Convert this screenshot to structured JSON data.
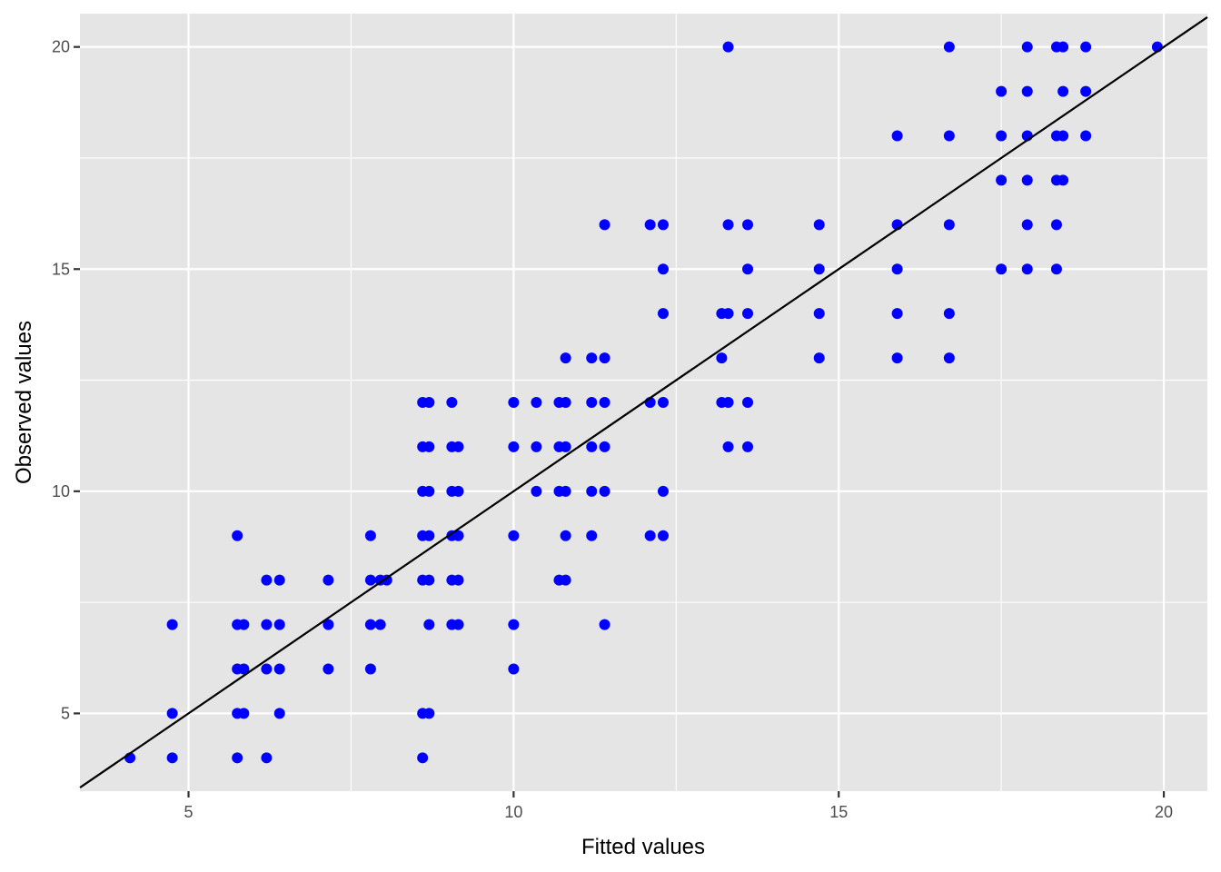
{
  "chart_data": {
    "type": "scatter",
    "title": "",
    "xlabel": "Fitted values",
    "ylabel": "Observed values",
    "xlim": [
      3.33,
      20.67
    ],
    "ylim": [
      3.25,
      20.75
    ],
    "x_ticks": [
      5,
      10,
      15,
      20
    ],
    "y_ticks": [
      5,
      10,
      15,
      20
    ],
    "x_tick_labels": [
      "5",
      "10",
      "15",
      "20"
    ],
    "y_tick_labels": [
      "5",
      "10",
      "15",
      "20"
    ],
    "grid": true,
    "legend": "none",
    "reference_line": {
      "intercept": 0,
      "slope": 1
    },
    "colors": {
      "points": "#0000ff",
      "line": "#000000",
      "panel": "#e5e5e5",
      "grid": "#ffffff"
    },
    "series": [
      {
        "points": [
          [
            4.1,
            4
          ],
          [
            4.75,
            4
          ],
          [
            4.75,
            5
          ],
          [
            4.75,
            7
          ],
          [
            5.75,
            9
          ],
          [
            5.75,
            7
          ],
          [
            5.75,
            6
          ],
          [
            5.75,
            5
          ],
          [
            5.75,
            4
          ],
          [
            5.85,
            7
          ],
          [
            5.85,
            6
          ],
          [
            5.85,
            5
          ],
          [
            6.2,
            8
          ],
          [
            6.2,
            7
          ],
          [
            6.2,
            6
          ],
          [
            6.2,
            4
          ],
          [
            6.4,
            8
          ],
          [
            6.4,
            7
          ],
          [
            6.4,
            6
          ],
          [
            6.4,
            5
          ],
          [
            7.15,
            8
          ],
          [
            7.15,
            7
          ],
          [
            7.15,
            6
          ],
          [
            7.8,
            9
          ],
          [
            7.8,
            8
          ],
          [
            7.8,
            7
          ],
          [
            7.8,
            6
          ],
          [
            7.95,
            8
          ],
          [
            7.95,
            7
          ],
          [
            8.05,
            8
          ],
          [
            8.6,
            12
          ],
          [
            8.6,
            11
          ],
          [
            8.6,
            10
          ],
          [
            8.6,
            9
          ],
          [
            8.6,
            8
          ],
          [
            8.6,
            5
          ],
          [
            8.6,
            4
          ],
          [
            8.7,
            12
          ],
          [
            8.7,
            11
          ],
          [
            8.7,
            10
          ],
          [
            8.7,
            9
          ],
          [
            8.7,
            8
          ],
          [
            8.7,
            7
          ],
          [
            8.7,
            5
          ],
          [
            9.05,
            12
          ],
          [
            9.05,
            11
          ],
          [
            9.05,
            10
          ],
          [
            9.05,
            9
          ],
          [
            9.05,
            8
          ],
          [
            9.05,
            7
          ],
          [
            9.15,
            11
          ],
          [
            9.15,
            10
          ],
          [
            9.15,
            9
          ],
          [
            9.15,
            8
          ],
          [
            9.15,
            7
          ],
          [
            10,
            12
          ],
          [
            10,
            11
          ],
          [
            10,
            9
          ],
          [
            10,
            7
          ],
          [
            10,
            6
          ],
          [
            10.35,
            12
          ],
          [
            10.35,
            11
          ],
          [
            10.35,
            10
          ],
          [
            10.7,
            12
          ],
          [
            10.7,
            11
          ],
          [
            10.7,
            10
          ],
          [
            10.7,
            8
          ],
          [
            10.8,
            13
          ],
          [
            10.8,
            12
          ],
          [
            10.8,
            11
          ],
          [
            10.8,
            10
          ],
          [
            10.8,
            9
          ],
          [
            10.8,
            8
          ],
          [
            11.2,
            13
          ],
          [
            11.2,
            12
          ],
          [
            11.2,
            11
          ],
          [
            11.2,
            10
          ],
          [
            11.2,
            9
          ],
          [
            11.4,
            16
          ],
          [
            11.4,
            13
          ],
          [
            11.4,
            12
          ],
          [
            11.4,
            11
          ],
          [
            11.4,
            10
          ],
          [
            11.4,
            7
          ],
          [
            12.1,
            16
          ],
          [
            12.1,
            12
          ],
          [
            12.1,
            9
          ],
          [
            12.3,
            16
          ],
          [
            12.3,
            15
          ],
          [
            12.3,
            14
          ],
          [
            12.3,
            12
          ],
          [
            12.3,
            10
          ],
          [
            12.3,
            9
          ],
          [
            13.2,
            14
          ],
          [
            13.2,
            13
          ],
          [
            13.2,
            12
          ],
          [
            13.3,
            20
          ],
          [
            13.3,
            16
          ],
          [
            13.3,
            14
          ],
          [
            13.3,
            12
          ],
          [
            13.3,
            11
          ],
          [
            13.6,
            16
          ],
          [
            13.6,
            15
          ],
          [
            13.6,
            14
          ],
          [
            13.6,
            12
          ],
          [
            13.6,
            11
          ],
          [
            14.7,
            16
          ],
          [
            14.7,
            15
          ],
          [
            14.7,
            14
          ],
          [
            14.7,
            13
          ],
          [
            15.9,
            18
          ],
          [
            15.9,
            16
          ],
          [
            15.9,
            15
          ],
          [
            15.9,
            14
          ],
          [
            15.9,
            13
          ],
          [
            16.7,
            20
          ],
          [
            16.7,
            18
          ],
          [
            16.7,
            16
          ],
          [
            16.7,
            14
          ],
          [
            16.7,
            13
          ],
          [
            17.5,
            19
          ],
          [
            17.5,
            18
          ],
          [
            17.5,
            17
          ],
          [
            17.5,
            15
          ],
          [
            17.9,
            20
          ],
          [
            17.9,
            19
          ],
          [
            17.9,
            18
          ],
          [
            17.9,
            17
          ],
          [
            17.9,
            16
          ],
          [
            17.9,
            15
          ],
          [
            18.35,
            20
          ],
          [
            18.35,
            18
          ],
          [
            18.35,
            17
          ],
          [
            18.35,
            16
          ],
          [
            18.35,
            15
          ],
          [
            18.45,
            20
          ],
          [
            18.45,
            19
          ],
          [
            18.45,
            18
          ],
          [
            18.45,
            17
          ],
          [
            18.8,
            20
          ],
          [
            18.8,
            19
          ],
          [
            18.8,
            18
          ],
          [
            19.9,
            20
          ]
        ]
      }
    ]
  }
}
